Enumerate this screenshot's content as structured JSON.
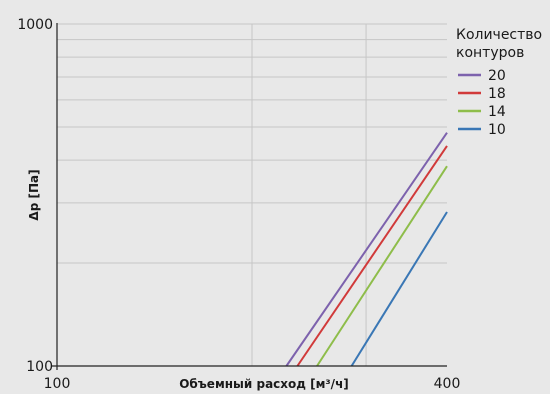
{
  "chart_data": {
    "type": "line",
    "xlabel": "Объемный расход [м³/ч]",
    "ylabel": "Δp [Па]",
    "x_scale": "log",
    "y_scale": "log",
    "xlim": [
      100,
      400
    ],
    "ylim": [
      100,
      1000
    ],
    "x_ticks": [
      100,
      400
    ],
    "y_ticks": [
      100,
      1000
    ],
    "x_tick_labels": [
      "100",
      "400"
    ],
    "y_tick_labels": [
      "100",
      "1000"
    ],
    "legend": {
      "title_lines": [
        "Количество",
        "контуров"
      ],
      "placement": "top-right"
    },
    "grid": true,
    "series": [
      {
        "name": "20",
        "color": "#7d62ad",
        "x": [
          226,
          400
        ],
        "y": [
          100,
          481
        ]
      },
      {
        "name": "18",
        "color": "#d13a3a",
        "x": [
          235,
          400
        ],
        "y": [
          100,
          440
        ]
      },
      {
        "name": "14",
        "color": "#8ebd4a",
        "x": [
          252,
          400
        ],
        "y": [
          100,
          384
        ]
      },
      {
        "name": "10",
        "color": "#3a77b5",
        "x": [
          285,
          400
        ],
        "y": [
          100,
          282
        ]
      }
    ]
  }
}
